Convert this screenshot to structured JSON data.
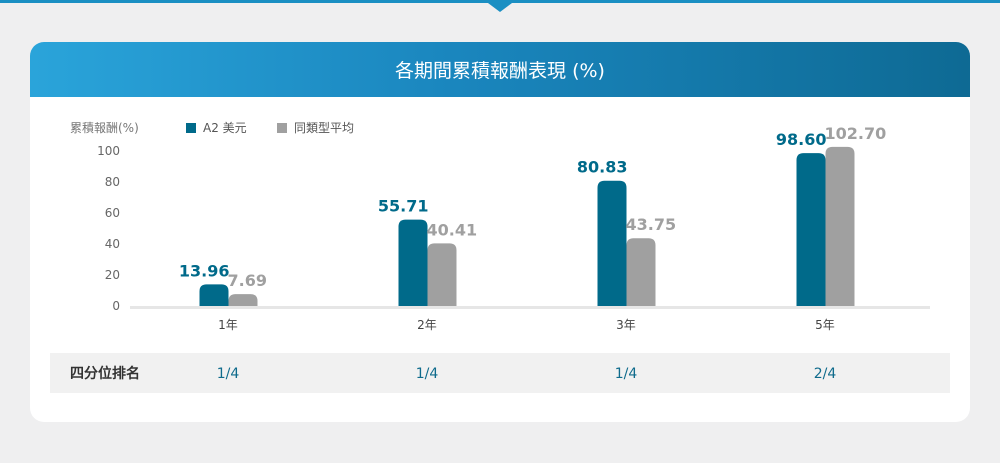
{
  "header": {
    "title": "各期間累積報酬表現 (%)"
  },
  "chart_data": {
    "type": "bar",
    "title": "各期間累積報酬表現 (%)",
    "ylabel": "累積報酬(%)",
    "categories": [
      "1年",
      "2年",
      "3年",
      "5年"
    ],
    "series": [
      {
        "name": "A2 美元",
        "values": [
          13.96,
          55.71,
          80.83,
          98.6
        ],
        "labels": [
          "13.96",
          "55.71",
          "80.83",
          "98.60"
        ],
        "color": "#006a8a"
      },
      {
        "name": "同類型平均",
        "values": [
          7.69,
          40.41,
          43.75,
          102.7
        ],
        "labels": [
          "7.69",
          "40.41",
          "43.75",
          "102.70"
        ],
        "color": "#a0a0a0"
      }
    ],
    "yticks": [
      "0",
      "20",
      "40",
      "60",
      "80",
      "100"
    ],
    "ylim": [
      0,
      100
    ],
    "grid": false,
    "legend_position": "top-left"
  },
  "ranking": {
    "label": "四分位排名",
    "values": [
      "1/4",
      "1/4",
      "1/4",
      "2/4"
    ]
  }
}
